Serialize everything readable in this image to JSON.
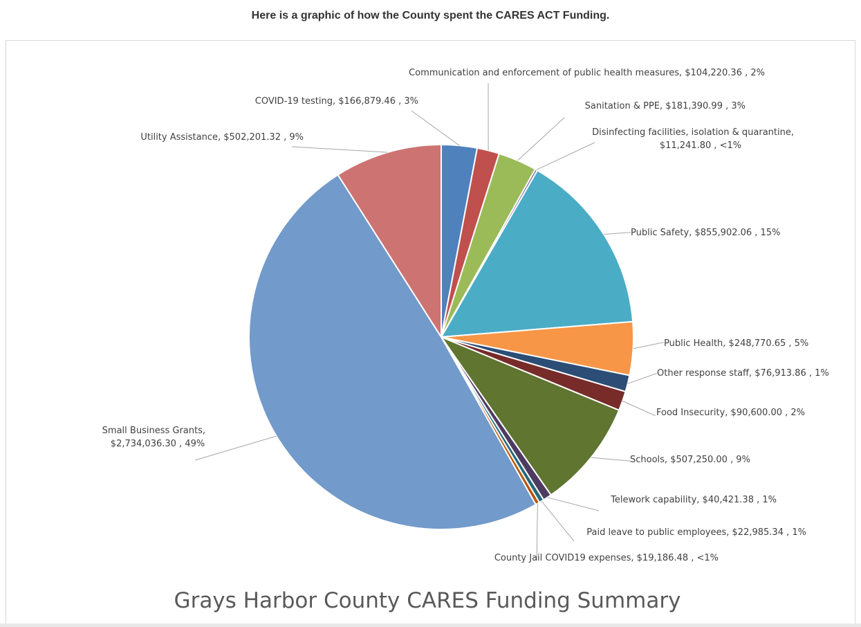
{
  "intro_text": "Here is a graphic of how the County spent the CARES ACT Funding.",
  "chart_data": {
    "type": "pie",
    "title": "Grays Harbor County CARES Funding Summary",
    "categories": [
      "COVID-19 testing",
      "Communication  and enforcement of public health measures",
      "Sanitation & PPE",
      "Disinfecting facilities, isolation & quarantine",
      "Public Safety",
      "Public Health",
      "Other response staff",
      "Food Insecurity",
      "Schools",
      "Telework capability",
      "Paid leave to public employees",
      "County Jail COVID19 expenses",
      "Small Business Grants",
      "Utility Assistance"
    ],
    "values": [
      166879.46,
      104220.36,
      181390.99,
      11241.8,
      855902.06,
      248770.65,
      76913.86,
      90600.0,
      507250.0,
      40421.38,
      22985.34,
      19186.48,
      2734036.3,
      502201.32
    ],
    "colors": [
      "#4f81bd",
      "#c0504d",
      "#9bbb59",
      "#8064a2",
      "#4bacc6",
      "#f79646",
      "#2c4d75",
      "#772c2a",
      "#5f7530",
      "#4d3b62",
      "#276a7c",
      "#b65708",
      "#729aca",
      "#cd7371"
    ],
    "data_labels": [
      [
        "COVID-19 testing,  $166,879.46 , 3%"
      ],
      [
        "Communication  and enforcement of public health measures,  $104,220.36 , 2%"
      ],
      [
        "Sanitation & PPE,  $181,390.99 , 3%"
      ],
      [
        "Disinfecting facilities, isolation & quarantine,",
        "$11,241.80 , <1%"
      ],
      [
        "Public Safety,  $855,902.06 , 15%"
      ],
      [
        "Public Health,  $248,770.65 , 5%"
      ],
      [
        "Other response staff,  $76,913.86 , 1%"
      ],
      [
        "Food Insecurity,  $90,600.00 , 2%"
      ],
      [
        "Schools,  $507,250.00 , 9%"
      ],
      [
        "Telework capability,  $40,421.38 , 1%"
      ],
      [
        "Paid leave to public employees,  $22,985.34 , 1%"
      ],
      [
        "County Jail COVID19 expenses,  $19,186.48 , <1%"
      ],
      [
        "Small Business Grants,",
        "$2,734,036.30 , 49%"
      ],
      [
        "Utility Assistance,  $502,201.32 , 9%"
      ]
    ],
    "legend": "none",
    "start_angle": "12 o'clock, clockwise"
  }
}
